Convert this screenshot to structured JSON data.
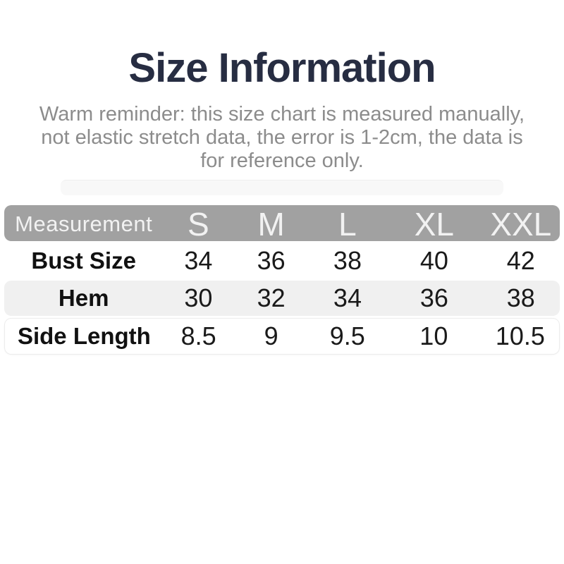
{
  "colors": {
    "title_text": "#272d42",
    "subtitle_text": "#8c8c8c",
    "table_header_bg": "#a1a1a1",
    "table_header_text": "#f2f2f2",
    "row_alt_bg": "#f0f0f0",
    "row_outline_border": "#ececec",
    "body_text": "#1a1a1a",
    "page_bg": "#ffffff"
  },
  "header": {
    "title": "Size Information",
    "subtitle_lines": [
      "Warm reminder: this size chart is measured manually,",
      "not elastic stretch data, the error is 1-2cm, the data is",
      "for reference only."
    ]
  },
  "chart_data": {
    "type": "table",
    "title": "Size Information",
    "columns": [
      "Measurement",
      "S",
      "M",
      "L",
      "XL",
      "XXL"
    ],
    "rows": [
      {
        "label": "Bust Size",
        "values": [
          "34",
          "36",
          "38",
          "40",
          "42"
        ]
      },
      {
        "label": "Hem",
        "values": [
          "30",
          "32",
          "34",
          "36",
          "38"
        ]
      },
      {
        "label": "Side Length",
        "values": [
          "8.5",
          "9",
          "9.5",
          "10",
          "10.5"
        ]
      }
    ],
    "layout": {
      "header_style": "gray-rounded-bar",
      "zebra_striping": true,
      "units": "inches-implied-not-shown"
    }
  }
}
